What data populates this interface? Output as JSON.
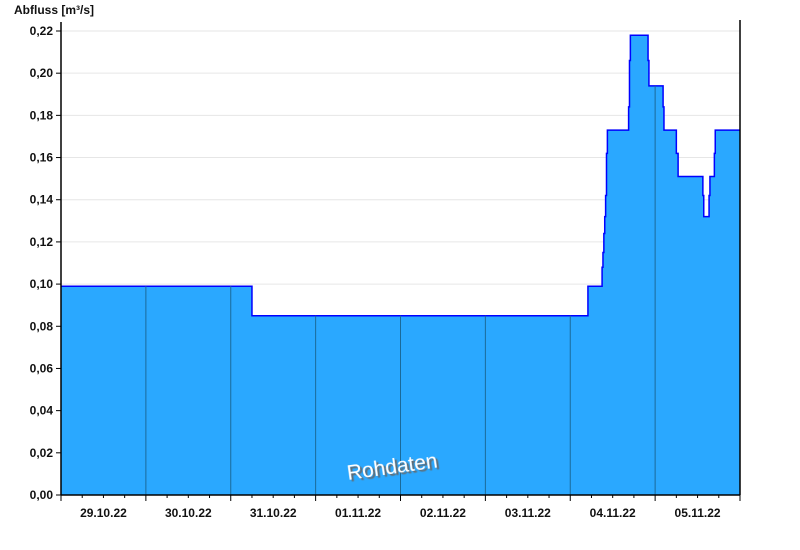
{
  "chart_data": {
    "type": "area",
    "step": true,
    "ylabel": "Abfluss [m³/s]",
    "xlabel": "",
    "ylim": [
      0,
      0.22
    ],
    "yticks": [
      "0,00",
      "0,02",
      "0,04",
      "0,06",
      "0,08",
      "0,10",
      "0,12",
      "0,14",
      "0,16",
      "0,18",
      "0,20",
      "0,22"
    ],
    "xticks": [
      "29.10.22",
      "30.10.22",
      "31.10.22",
      "01.11.22",
      "02.11.22",
      "03.11.22",
      "04.11.22",
      "05.11.22"
    ],
    "xlim": [
      "29.10.22 00:00",
      "06.11.22 00:00"
    ],
    "grid": true,
    "fill_color": "#2aa8ff",
    "line_color": "#0000ff",
    "watermark": "Rohdaten",
    "series": [
      {
        "points": [
          [
            "29.10.22 00:00",
            0.099
          ],
          [
            "31.10.22 06:00",
            0.085
          ],
          [
            "04.11.22 05:00",
            0.099
          ],
          [
            "04.11.22 09:00",
            0.108
          ],
          [
            "04.11.22 09:15",
            0.115
          ],
          [
            "04.11.22 09:30",
            0.124
          ],
          [
            "04.11.22 09:45",
            0.132
          ],
          [
            "04.11.22 10:00",
            0.142
          ],
          [
            "04.11.22 10:15",
            0.162
          ],
          [
            "04.11.22 10:30",
            0.173
          ],
          [
            "04.11.22 16:30",
            0.184
          ],
          [
            "04.11.22 16:45",
            0.206
          ],
          [
            "04.11.22 17:00",
            0.218
          ],
          [
            "04.11.22 22:00",
            0.206
          ],
          [
            "04.11.22 22:15",
            0.194
          ],
          [
            "05.11.22 02:15",
            0.184
          ],
          [
            "05.11.22 02:30",
            0.173
          ],
          [
            "05.11.22 06:00",
            0.162
          ],
          [
            "05.11.22 06:30",
            0.151
          ],
          [
            "05.11.22 13:30",
            0.142
          ],
          [
            "05.11.22 13:45",
            0.132
          ],
          [
            "05.11.22 15:15",
            0.142
          ],
          [
            "05.11.22 15:30",
            0.151
          ],
          [
            "05.11.22 16:45",
            0.162
          ],
          [
            "05.11.22 17:00",
            0.173
          ],
          [
            "06.11.22 00:00",
            0.173
          ]
        ]
      }
    ]
  }
}
